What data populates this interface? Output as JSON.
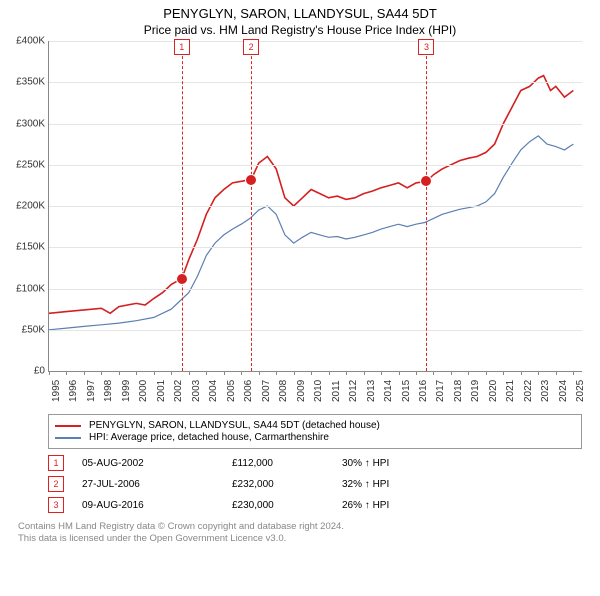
{
  "title": "PENYGLYN, SARON, LLANDYSUL, SA44 5DT",
  "subtitle": "Price paid vs. HM Land Registry's House Price Index (HPI)",
  "chart": {
    "ylim": [
      0,
      400000
    ],
    "ytick_step": 50000,
    "ylabels": [
      "£0",
      "£50K",
      "£100K",
      "£150K",
      "£200K",
      "£250K",
      "£300K",
      "£350K",
      "£400K"
    ],
    "xlim": [
      1995,
      2025.5
    ],
    "xticks": [
      1995,
      1996,
      1997,
      1998,
      1999,
      2000,
      2001,
      2002,
      2003,
      2004,
      2005,
      2006,
      2007,
      2008,
      2009,
      2010,
      2011,
      2012,
      2013,
      2014,
      2015,
      2016,
      2017,
      2018,
      2019,
      2020,
      2021,
      2022,
      2023,
      2024,
      2025
    ],
    "grid_color": "#e5e5e5",
    "series": {
      "property": {
        "color": "#d42020",
        "width": 1.6,
        "label": "PENYGLYN, SARON, LLANDYSUL, SA44 5DT (detached house)",
        "data": [
          [
            1995,
            70000
          ],
          [
            1996,
            72000
          ],
          [
            1997,
            74000
          ],
          [
            1998,
            76000
          ],
          [
            1998.5,
            70000
          ],
          [
            1999,
            78000
          ],
          [
            2000,
            82000
          ],
          [
            2000.5,
            80000
          ],
          [
            2001,
            88000
          ],
          [
            2001.5,
            95000
          ],
          [
            2002,
            105000
          ],
          [
            2002.6,
            112000
          ],
          [
            2003,
            135000
          ],
          [
            2003.5,
            160000
          ],
          [
            2004,
            190000
          ],
          [
            2004.5,
            210000
          ],
          [
            2005,
            220000
          ],
          [
            2005.5,
            228000
          ],
          [
            2006,
            230000
          ],
          [
            2006.57,
            232000
          ],
          [
            2007,
            252000
          ],
          [
            2007.5,
            260000
          ],
          [
            2008,
            245000
          ],
          [
            2008.5,
            210000
          ],
          [
            2009,
            200000
          ],
          [
            2009.5,
            210000
          ],
          [
            2010,
            220000
          ],
          [
            2010.5,
            215000
          ],
          [
            2011,
            210000
          ],
          [
            2011.5,
            212000
          ],
          [
            2012,
            208000
          ],
          [
            2012.5,
            210000
          ],
          [
            2013,
            215000
          ],
          [
            2013.5,
            218000
          ],
          [
            2014,
            222000
          ],
          [
            2014.5,
            225000
          ],
          [
            2015,
            228000
          ],
          [
            2015.5,
            222000
          ],
          [
            2016,
            228000
          ],
          [
            2016.6,
            230000
          ],
          [
            2017,
            238000
          ],
          [
            2017.5,
            245000
          ],
          [
            2018,
            250000
          ],
          [
            2018.5,
            255000
          ],
          [
            2019,
            258000
          ],
          [
            2019.5,
            260000
          ],
          [
            2020,
            265000
          ],
          [
            2020.5,
            275000
          ],
          [
            2021,
            300000
          ],
          [
            2021.5,
            320000
          ],
          [
            2022,
            340000
          ],
          [
            2022.5,
            345000
          ],
          [
            2023,
            355000
          ],
          [
            2023.3,
            358000
          ],
          [
            2023.7,
            340000
          ],
          [
            2024,
            345000
          ],
          [
            2024.5,
            332000
          ],
          [
            2025,
            340000
          ]
        ]
      },
      "hpi": {
        "color": "#5b7fb3",
        "width": 1.2,
        "label": "HPI: Average price, detached house, Carmarthenshire",
        "data": [
          [
            1995,
            50000
          ],
          [
            1996,
            52000
          ],
          [
            1997,
            54000
          ],
          [
            1998,
            56000
          ],
          [
            1999,
            58000
          ],
          [
            2000,
            61000
          ],
          [
            2001,
            65000
          ],
          [
            2002,
            75000
          ],
          [
            2003,
            95000
          ],
          [
            2003.5,
            115000
          ],
          [
            2004,
            140000
          ],
          [
            2004.5,
            155000
          ],
          [
            2005,
            165000
          ],
          [
            2005.5,
            172000
          ],
          [
            2006,
            178000
          ],
          [
            2006.5,
            185000
          ],
          [
            2007,
            195000
          ],
          [
            2007.5,
            200000
          ],
          [
            2008,
            190000
          ],
          [
            2008.5,
            165000
          ],
          [
            2009,
            155000
          ],
          [
            2009.5,
            162000
          ],
          [
            2010,
            168000
          ],
          [
            2010.5,
            165000
          ],
          [
            2011,
            162000
          ],
          [
            2011.5,
            163000
          ],
          [
            2012,
            160000
          ],
          [
            2012.5,
            162000
          ],
          [
            2013,
            165000
          ],
          [
            2013.5,
            168000
          ],
          [
            2014,
            172000
          ],
          [
            2014.5,
            175000
          ],
          [
            2015,
            178000
          ],
          [
            2015.5,
            175000
          ],
          [
            2016,
            178000
          ],
          [
            2016.5,
            180000
          ],
          [
            2017,
            185000
          ],
          [
            2017.5,
            190000
          ],
          [
            2018,
            193000
          ],
          [
            2018.5,
            196000
          ],
          [
            2019,
            198000
          ],
          [
            2019.5,
            200000
          ],
          [
            2020,
            205000
          ],
          [
            2020.5,
            215000
          ],
          [
            2021,
            235000
          ],
          [
            2021.5,
            252000
          ],
          [
            2022,
            268000
          ],
          [
            2022.5,
            278000
          ],
          [
            2023,
            285000
          ],
          [
            2023.5,
            275000
          ],
          [
            2024,
            272000
          ],
          [
            2024.5,
            268000
          ],
          [
            2025,
            275000
          ]
        ]
      }
    },
    "events": [
      {
        "n": "1",
        "date": "05-AUG-2002",
        "x": 2002.6,
        "price": 112000,
        "price_label": "£112,000",
        "pct": "30% ↑ HPI"
      },
      {
        "n": "2",
        "date": "27-JUL-2006",
        "x": 2006.57,
        "price": 232000,
        "price_label": "£232,000",
        "pct": "32% ↑ HPI"
      },
      {
        "n": "3",
        "date": "09-AUG-2016",
        "x": 2016.6,
        "price": 230000,
        "price_label": "£230,000",
        "pct": "26% ↑ HPI"
      }
    ],
    "marker_color": "#d42020"
  },
  "footer_line1": "Contains HM Land Registry data © Crown copyright and database right 2024.",
  "footer_line2": "This data is licensed under the Open Government Licence v3.0."
}
